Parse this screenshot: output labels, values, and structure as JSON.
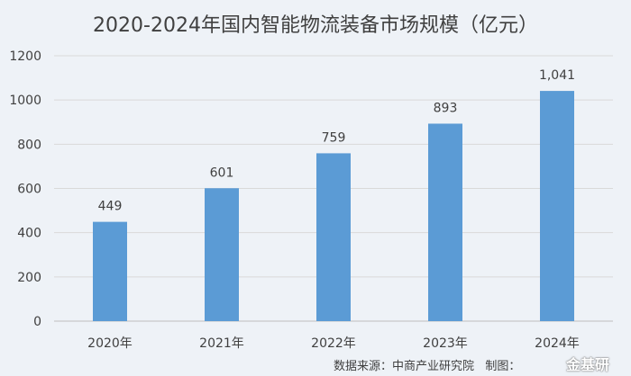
{
  "chart_data": {
    "type": "bar",
    "title": "2020-2024年国内智能物流装备市场规模（亿元）",
    "categories": [
      "2020年",
      "2021年",
      "2022年",
      "2023年",
      "2024年"
    ],
    "values": [
      449,
      601,
      759,
      893,
      1041
    ],
    "data_labels": [
      "449",
      "601",
      "759",
      "893",
      "1,041"
    ],
    "ylim": [
      0,
      1200
    ],
    "yticks": [
      "0",
      "200",
      "400",
      "600",
      "800",
      "1000",
      "1200"
    ],
    "xlabel": "",
    "ylabel": "",
    "grid": true,
    "bar_color": "#5b9bd5"
  },
  "source": "数据来源：中商产业研究院",
  "made_by": "制图：",
  "watermark": "金基研"
}
